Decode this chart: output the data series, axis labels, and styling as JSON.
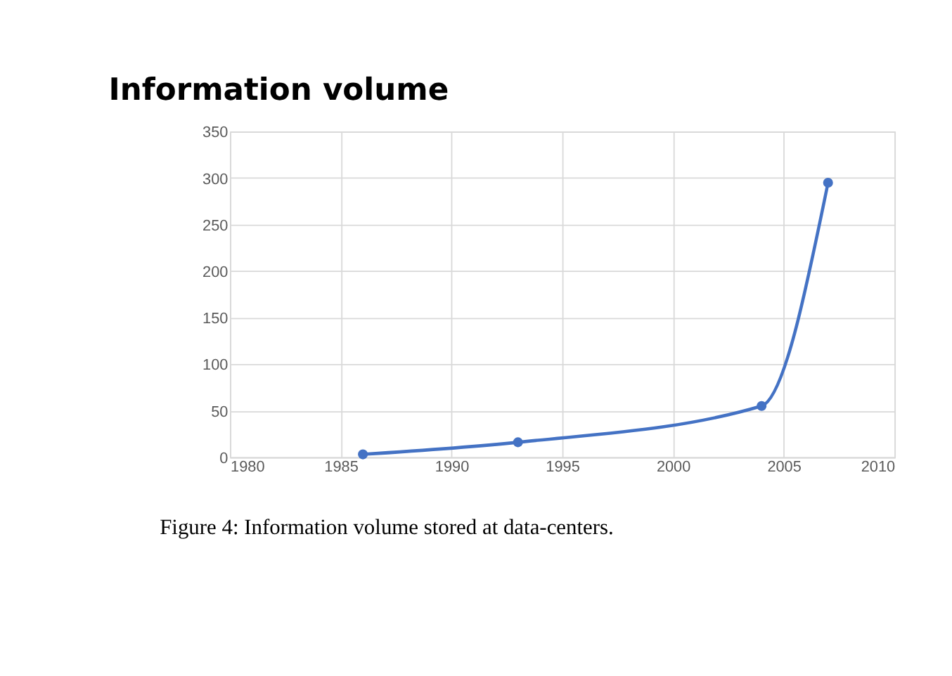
{
  "chart_data": {
    "type": "line",
    "title": "Information volume",
    "x": [
      1986,
      1993,
      2004,
      2007
    ],
    "series": [
      {
        "color": "#4472c4",
        "values": [
          3,
          16,
          55,
          295
        ]
      }
    ],
    "xlim": [
      1980,
      2010
    ],
    "xticks": [
      1980,
      1985,
      1990,
      1995,
      2000,
      2005,
      2010
    ],
    "ylim": [
      0,
      350
    ],
    "yticks": [
      0,
      50,
      100,
      150,
      200,
      250,
      300,
      350
    ],
    "grid": true,
    "marker": "circle",
    "line_style": "solid",
    "annotations": [
      "Figure 4: Information volume stored at data-centers."
    ]
  }
}
